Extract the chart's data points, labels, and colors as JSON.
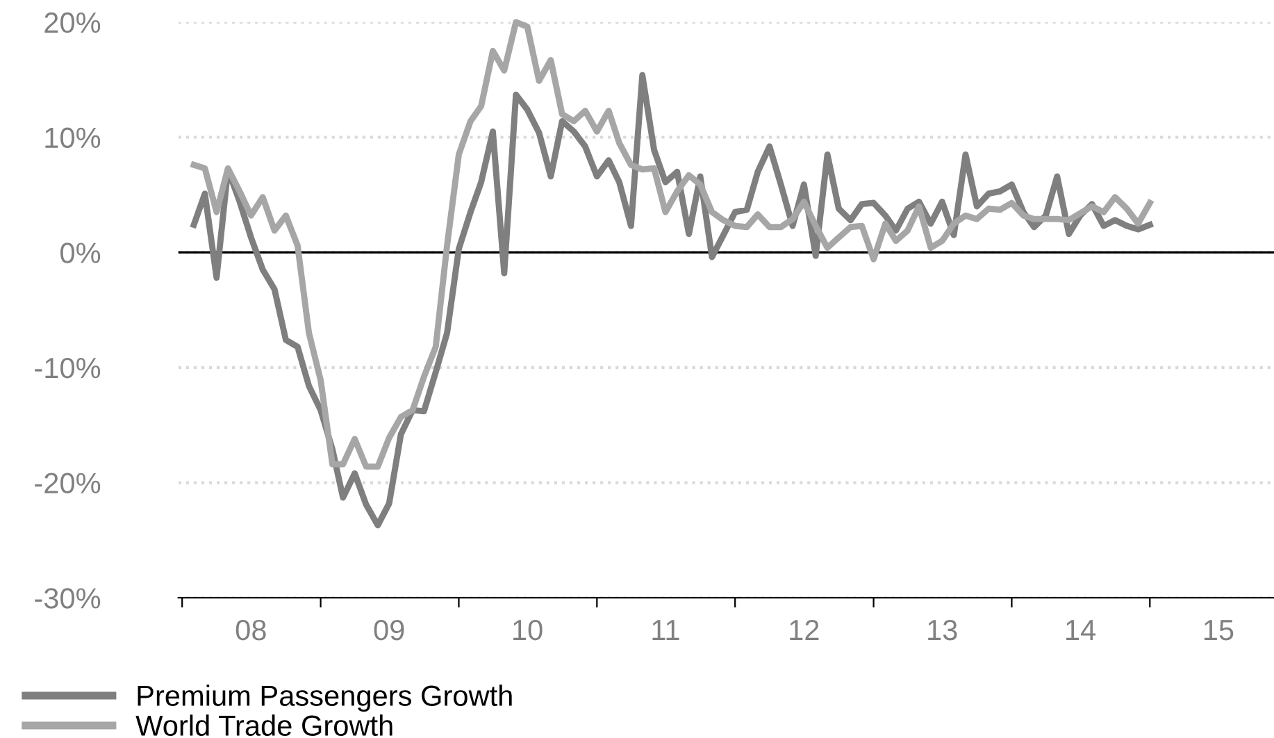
{
  "chart_data": {
    "type": "line",
    "xlim": [
      "2007-12-22",
      "2015-11-25"
    ],
    "xticks": [
      {
        "value": "2008-01-01",
        "label": null
      },
      {
        "value": "2008-07-01",
        "label": "08"
      },
      {
        "value": "2009-01-01",
        "label": null
      },
      {
        "value": "2009-07-01",
        "label": "09"
      },
      {
        "value": "2010-01-01",
        "label": null
      },
      {
        "value": "2010-07-01",
        "label": "10"
      },
      {
        "value": "2011-01-01",
        "label": null
      },
      {
        "value": "2011-07-01",
        "label": "11"
      },
      {
        "value": "2012-01-01",
        "label": null
      },
      {
        "value": "2012-07-01",
        "label": "12"
      },
      {
        "value": "2013-01-01",
        "label": null
      },
      {
        "value": "2013-07-01",
        "label": "13"
      },
      {
        "value": "2014-01-01",
        "label": null
      },
      {
        "value": "2014-07-01",
        "label": "14"
      },
      {
        "value": "2015-01-01",
        "label": null
      },
      {
        "value": "2015-07-01",
        "label": "15"
      }
    ],
    "ylim": [
      -30,
      20
    ],
    "yticks": [
      {
        "value": -30,
        "label": "-30%"
      },
      {
        "value": -20,
        "label": "-20%"
      },
      {
        "value": -10,
        "label": "-10%"
      },
      {
        "value": 0,
        "label": "0%"
      },
      {
        "value": 10,
        "label": "10%"
      },
      {
        "value": 20,
        "label": "20%"
      }
    ],
    "grid": "y",
    "legend": "bottom left",
    "ref_lines": [
      {
        "axis": "y",
        "value": 0,
        "color": "#000000"
      }
    ],
    "series": [
      {
        "name": "Premium Passengers Growth",
        "color": "#7f7f7f",
        "x": [
          "2008-02",
          "2008-03",
          "2008-04",
          "2008-05",
          "2008-06",
          "2008-07",
          "2008-08",
          "2008-09",
          "2008-10",
          "2008-11",
          "2008-12",
          "2009-01",
          "2009-02",
          "2009-03",
          "2009-04",
          "2009-05",
          "2009-06",
          "2009-07",
          "2009-08",
          "2009-09",
          "2009-10",
          "2009-11",
          "2009-12",
          "2010-01",
          "2010-02",
          "2010-03",
          "2010-04",
          "2010-05",
          "2010-06",
          "2010-07",
          "2010-08",
          "2010-09",
          "2010-10",
          "2010-11",
          "2010-12",
          "2011-01",
          "2011-02",
          "2011-03",
          "2011-04",
          "2011-05",
          "2011-06",
          "2011-07",
          "2011-08",
          "2011-09",
          "2011-10",
          "2011-11",
          "2011-12",
          "2012-01",
          "2012-02",
          "2012-03",
          "2012-04",
          "2012-05",
          "2012-06",
          "2012-07",
          "2012-08",
          "2012-09",
          "2012-10",
          "2012-11",
          "2012-12",
          "2013-01",
          "2013-02",
          "2013-03",
          "2013-04",
          "2013-05",
          "2013-06",
          "2013-07",
          "2013-08",
          "2013-09",
          "2013-10",
          "2013-11",
          "2013-12",
          "2014-01",
          "2014-02",
          "2014-03",
          "2014-04",
          "2014-05",
          "2014-06",
          "2014-07",
          "2014-08",
          "2014-09",
          "2014-10",
          "2014-11",
          "2014-12",
          "2015-01"
        ],
        "values": [
          2.4,
          5.1,
          -2.2,
          7.2,
          4.4,
          1.3,
          -1.5,
          -3.2,
          -7.6,
          -8.2,
          -11.6,
          -13.7,
          -17.1,
          -21.3,
          -19.2,
          -21.9,
          -23.7,
          -21.8,
          -15.8,
          -13.7,
          -13.8,
          -10.4,
          -7.0,
          0.3,
          3.5,
          6.1,
          10.5,
          -1.8,
          13.7,
          12.4,
          10.4,
          6.6,
          11.4,
          10.5,
          9.2,
          6.6,
          8.0,
          6.1,
          2.3,
          15.4,
          8.9,
          6.1,
          7.0,
          1.6,
          6.6,
          -0.4,
          1.5,
          3.5,
          3.7,
          7.0,
          9.2,
          5.9,
          2.3,
          5.9,
          -0.3,
          8.5,
          3.8,
          2.8,
          4.2,
          4.3,
          3.2,
          1.9,
          3.8,
          4.4,
          2.5,
          4.4,
          1.5,
          8.5,
          4.0,
          5.1,
          5.3,
          5.9,
          3.5,
          2.2,
          3.2,
          6.6,
          1.6,
          3.2,
          4.2,
          2.3,
          2.8,
          2.3,
          2.0,
          2.4
        ]
      },
      {
        "name": "World Trade Growth",
        "color": "#a6a6a6",
        "x": [
          "2008-02",
          "2008-03",
          "2008-04",
          "2008-05",
          "2008-06",
          "2008-07",
          "2008-08",
          "2008-09",
          "2008-10",
          "2008-11",
          "2008-12",
          "2009-01",
          "2009-02",
          "2009-03",
          "2009-04",
          "2009-05",
          "2009-06",
          "2009-07",
          "2009-08",
          "2009-09",
          "2009-10",
          "2009-11",
          "2009-12",
          "2010-01",
          "2010-02",
          "2010-03",
          "2010-04",
          "2010-05",
          "2010-06",
          "2010-07",
          "2010-08",
          "2010-09",
          "2010-10",
          "2010-11",
          "2010-12",
          "2011-01",
          "2011-02",
          "2011-03",
          "2011-04",
          "2011-05",
          "2011-06",
          "2011-07",
          "2011-08",
          "2011-09",
          "2011-10",
          "2011-11",
          "2011-12",
          "2012-01",
          "2012-02",
          "2012-03",
          "2012-04",
          "2012-05",
          "2012-06",
          "2012-07",
          "2012-08",
          "2012-09",
          "2012-10",
          "2012-11",
          "2012-12",
          "2013-01",
          "2013-02",
          "2013-03",
          "2013-04",
          "2013-05",
          "2013-06",
          "2013-07",
          "2013-08",
          "2013-09",
          "2013-10",
          "2013-11",
          "2013-12",
          "2014-01",
          "2014-02",
          "2014-03",
          "2014-04",
          "2014-05",
          "2014-06",
          "2014-07",
          "2014-08",
          "2014-09",
          "2014-10",
          "2014-11",
          "2014-12",
          "2015-01"
        ],
        "values": [
          7.6,
          7.3,
          3.5,
          7.3,
          5.3,
          3.2,
          4.8,
          1.9,
          3.2,
          0.6,
          -7.0,
          -11.1,
          -18.4,
          -18.4,
          -16.2,
          -18.6,
          -18.6,
          -16.1,
          -14.3,
          -13.7,
          -10.8,
          -8.2,
          0.6,
          8.5,
          11.4,
          12.7,
          17.5,
          15.8,
          20.0,
          19.6,
          14.9,
          16.7,
          12.0,
          11.4,
          12.3,
          10.5,
          12.3,
          9.5,
          7.6,
          7.2,
          7.3,
          3.5,
          5.3,
          6.7,
          5.9,
          3.5,
          2.8,
          2.3,
          2.2,
          3.3,
          2.2,
          2.2,
          2.9,
          4.4,
          2.3,
          0.4,
          1.3,
          2.2,
          2.3,
          -0.6,
          2.5,
          1.0,
          1.9,
          4.0,
          0.4,
          1.0,
          2.5,
          3.2,
          2.9,
          3.8,
          3.7,
          4.3,
          3.2,
          2.9,
          2.9,
          2.9,
          2.8,
          3.4,
          4.0,
          3.5,
          4.8,
          3.8,
          2.5,
          4.3
        ]
      }
    ]
  }
}
